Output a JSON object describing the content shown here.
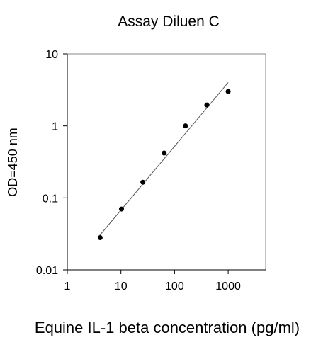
{
  "chart_data": {
    "type": "scatter",
    "title": "Assay Diluen C",
    "x_label": "Equine IL-1 beta concentration (pg/ml)",
    "y_label": "OD=450 nm",
    "x": [
      4.1,
      10.24,
      25.6,
      64,
      160,
      400,
      1000
    ],
    "values": [
      0.028,
      0.07,
      0.165,
      0.42,
      1.0,
      1.95,
      3.0
    ],
    "color": "#000000",
    "fit_line": {
      "x": [
        4,
        1000
      ],
      "values": [
        0.03,
        4
      ],
      "color": "#555555"
    },
    "x_log": true,
    "y_log": true,
    "xlim": [
      1,
      5000
    ],
    "ylim": [
      0.01,
      10
    ],
    "xticks": [
      1,
      10,
      100,
      1000
    ],
    "yticks": [
      0.01,
      0.1,
      1,
      10
    ]
  }
}
